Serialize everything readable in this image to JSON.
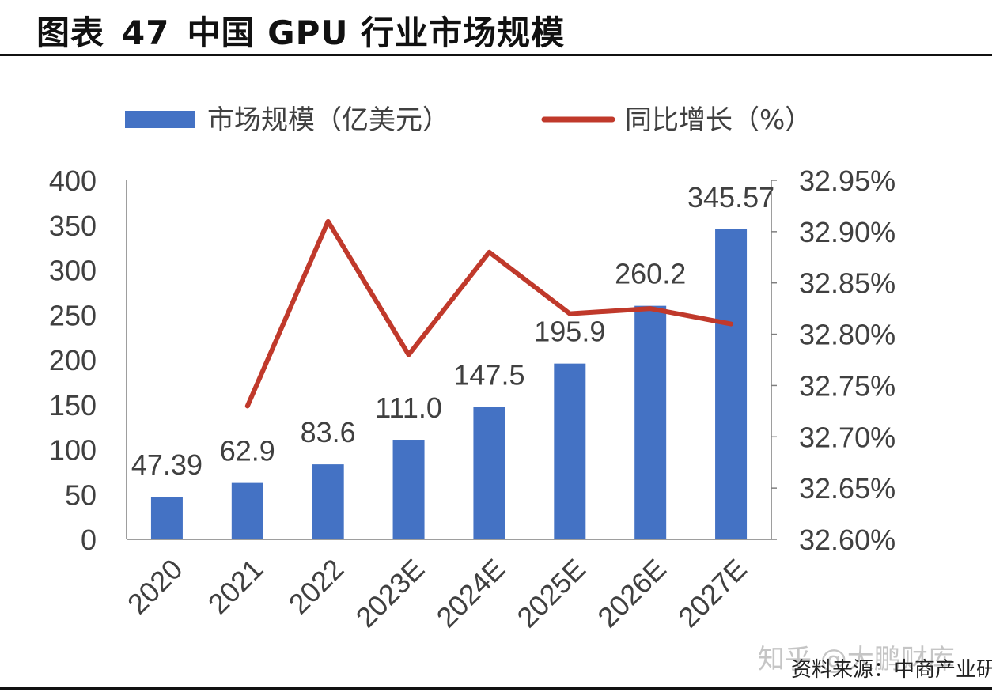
{
  "title": {
    "prefix": "图表",
    "number": "47",
    "text": "中国 GPU 行业市场规模"
  },
  "chart_data": {
    "type": "bar",
    "categories": [
      "2020",
      "2021",
      "2022",
      "2023E",
      "2024E",
      "2025E",
      "2026E",
      "2027E"
    ],
    "series": [
      {
        "name": "市场规模（亿美元）",
        "kind": "bar",
        "axis": "left",
        "color": "#4472C4",
        "values": [
          47.39,
          62.9,
          83.6,
          111.0,
          147.5,
          195.9,
          260.2,
          345.57
        ],
        "labels": [
          "47.39",
          "62.9",
          "83.6",
          "111.0",
          "147.5",
          "195.9",
          "260.2",
          "345.57"
        ]
      },
      {
        "name": "同比增长（%）",
        "kind": "line",
        "axis": "right",
        "color": "#C0392B",
        "values": [
          null,
          32.73,
          32.91,
          32.78,
          32.88,
          32.82,
          32.825,
          32.81
        ]
      }
    ],
    "ylim": [
      0,
      400
    ],
    "yticks": [
      "0",
      "50",
      "100",
      "150",
      "200",
      "250",
      "300",
      "350",
      "400"
    ],
    "y2lim": [
      32.6,
      32.95
    ],
    "y2ticks": [
      "32.60%",
      "32.65%",
      "32.70%",
      "32.75%",
      "32.80%",
      "32.85%",
      "32.90%",
      "32.95%"
    ],
    "legend_position": "top"
  },
  "watermark": "知乎 @大鹏财库",
  "source": "资料来源：中商产业研究院"
}
